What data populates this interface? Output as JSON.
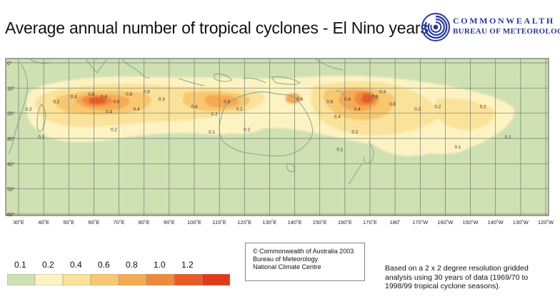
{
  "title": "Average annual number of tropical cyclones  -  El Nino years",
  "logo": {
    "line1": "COMMONWEALTH",
    "line2": "BUREAU OF METEOROLOGY",
    "icon": "bom-swirl-icon"
  },
  "map": {
    "lat_labels": [
      "0°",
      "10°",
      "20°",
      "30°",
      "40°",
      "50°",
      "60°"
    ],
    "lon_labels": [
      "30˚E",
      "40˚E",
      "50˚E",
      "60˚E",
      "70˚E",
      "80˚E",
      "90˚E",
      "100˚E",
      "110˚E",
      "120˚E",
      "130˚E",
      "140˚E",
      "150˚E",
      "160˚E",
      "170˚E",
      "180˚",
      "170˚W",
      "160˚W",
      "150˚W",
      "140˚W",
      "130˚W",
      "120˚W"
    ],
    "lat_range_deg_south": [
      0,
      60
    ],
    "lon_range_deg_east": [
      30,
      240
    ],
    "background_color": "#cfe0b2",
    "land_outline_color": "#8aa48a",
    "grid_color": "#707a70"
  },
  "contour_labels": [
    {
      "text": "0.2",
      "lon": 34,
      "lat": 19
    },
    {
      "text": "0.2",
      "lon": 45,
      "lat": 16
    },
    {
      "text": "0.4",
      "lon": 52,
      "lat": 14
    },
    {
      "text": "0.1",
      "lon": 39,
      "lat": 30
    },
    {
      "text": "0.8",
      "lon": 59,
      "lat": 13
    },
    {
      "text": "0.4",
      "lon": 64,
      "lat": 14
    },
    {
      "text": "0.4",
      "lon": 66,
      "lat": 20
    },
    {
      "text": "0.6",
      "lon": 69,
      "lat": 16
    },
    {
      "text": "0.8",
      "lon": 74,
      "lat": 13
    },
    {
      "text": "0.4",
      "lon": 77,
      "lat": 19
    },
    {
      "text": "0.8",
      "lon": 81,
      "lat": 12
    },
    {
      "text": "0.3",
      "lon": 87,
      "lat": 15
    },
    {
      "text": "0.2",
      "lon": 68,
      "lat": 27
    },
    {
      "text": "0.4",
      "lon": 100,
      "lat": 18
    },
    {
      "text": "0.2",
      "lon": 108,
      "lat": 21
    },
    {
      "text": "0.1",
      "lon": 107,
      "lat": 28
    },
    {
      "text": "0.8",
      "lon": 113,
      "lat": 16
    },
    {
      "text": "0.2",
      "lon": 118,
      "lat": 19
    },
    {
      "text": "0.2",
      "lon": 121,
      "lat": 27
    },
    {
      "text": "0.6",
      "lon": 142,
      "lat": 15
    },
    {
      "text": "0.8",
      "lon": 154,
      "lat": 16
    },
    {
      "text": "0.6",
      "lon": 161,
      "lat": 15
    },
    {
      "text": "0.4",
      "lon": 165,
      "lat": 19
    },
    {
      "text": "0.4",
      "lon": 157,
      "lat": 22
    },
    {
      "text": "0.2",
      "lon": 164,
      "lat": 28
    },
    {
      "text": "0.1",
      "lon": 158,
      "lat": 35
    },
    {
      "text": "0.8",
      "lon": 172,
      "lat": 14
    },
    {
      "text": "0.4",
      "lon": 175,
      "lat": 12
    },
    {
      "text": "0.8",
      "lon": 179,
      "lat": 17
    },
    {
      "text": "0.2",
      "lon": 189,
      "lat": 19
    },
    {
      "text": "0.2",
      "lon": 197,
      "lat": 18
    },
    {
      "text": "0.2",
      "lon": 215,
      "lat": 18
    },
    {
      "text": "0.1",
      "lon": 225,
      "lat": 30
    },
    {
      "text": "0.1",
      "lon": 205,
      "lat": 34
    }
  ],
  "legend": {
    "labels": [
      "0.1",
      "0.2",
      "0.4",
      "0.6",
      "0.8",
      "1.0",
      "1.2"
    ],
    "colors": [
      "#cfe0b2",
      "#fdf3c2",
      "#fbe29a",
      "#f8c870",
      "#f5aa54",
      "#ee8a3c",
      "#e85a26",
      "#e03a18"
    ]
  },
  "copyright": {
    "line1": "© Commonwealth of Australia 2003",
    "line2": "Bureau of Meteorology",
    "line3": "National Climate Centre"
  },
  "note": {
    "line1": "Based on a 2 x 2 degree resolution gridded",
    "line2": "analysis using 30 years of data (1969/70 to",
    "line3": "1998/99 tropical cyclone seasons)."
  }
}
